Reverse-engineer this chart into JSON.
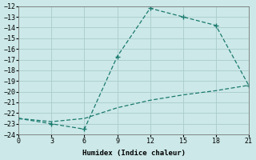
{
  "xlabel": "Humidex (Indice chaleur)",
  "line1_x": [
    0,
    3,
    6,
    9,
    12,
    15,
    18,
    21
  ],
  "line1_y": [
    -22.5,
    -23.0,
    -23.5,
    -16.7,
    -12.2,
    -13.0,
    -13.8,
    -19.4
  ],
  "line2_x": [
    0,
    3,
    6,
    9,
    12,
    15,
    18,
    21
  ],
  "line2_y": [
    -22.5,
    -22.8,
    -22.5,
    -21.5,
    -20.8,
    -20.3,
    -19.9,
    -19.4
  ],
  "color": "#1a7a6e",
  "bg_color": "#cce8e8",
  "grid_color": "#aacccc",
  "xlim": [
    0,
    21
  ],
  "ylim": [
    -24,
    -12
  ],
  "xticks": [
    0,
    3,
    6,
    9,
    12,
    15,
    18,
    21
  ],
  "yticks": [
    -12,
    -13,
    -14,
    -15,
    -16,
    -17,
    -18,
    -19,
    -20,
    -21,
    -22,
    -23,
    -24
  ],
  "marker": "+"
}
